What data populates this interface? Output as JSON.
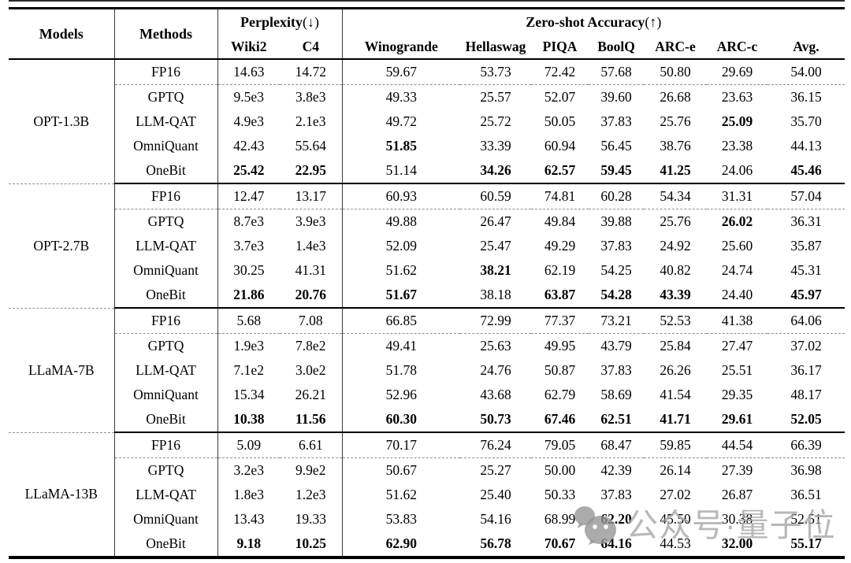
{
  "header": {
    "models": "Models",
    "methods": "Methods",
    "perplexity_group": "Perplexity",
    "perplexity_arrow": "(↓)",
    "zeroshot_group": "Zero-shot Accuracy",
    "zeroshot_arrow": "(↑)",
    "subcolumns": [
      "Wiki2",
      "C4",
      "Winogrande",
      "Hellaswag",
      "PIQA",
      "BoolQ",
      "ARC-e",
      "ARC-c",
      "Avg."
    ]
  },
  "blocks": [
    {
      "model": "OPT-1.3B",
      "rows": [
        {
          "method": "FP16",
          "values": [
            "14.63",
            "14.72",
            "59.67",
            "53.73",
            "72.42",
            "57.68",
            "50.80",
            "29.69",
            "54.00"
          ],
          "bold": [
            0,
            0,
            0,
            0,
            0,
            0,
            0,
            0,
            0
          ]
        },
        {
          "method": "GPTQ",
          "values": [
            "9.5e3",
            "3.8e3",
            "49.33",
            "25.57",
            "52.07",
            "39.60",
            "26.68",
            "23.63",
            "36.15"
          ],
          "bold": [
            0,
            0,
            0,
            0,
            0,
            0,
            0,
            0,
            0
          ]
        },
        {
          "method": "LLM-QAT",
          "values": [
            "4.9e3",
            "2.1e3",
            "49.72",
            "25.72",
            "50.05",
            "37.83",
            "25.76",
            "25.09",
            "35.70"
          ],
          "bold": [
            0,
            0,
            0,
            0,
            0,
            0,
            0,
            1,
            0
          ]
        },
        {
          "method": "OmniQuant",
          "values": [
            "42.43",
            "55.64",
            "51.85",
            "33.39",
            "60.94",
            "56.45",
            "38.76",
            "23.38",
            "44.13"
          ],
          "bold": [
            0,
            0,
            1,
            0,
            0,
            0,
            0,
            0,
            0
          ]
        },
        {
          "method": "OneBit",
          "values": [
            "25.42",
            "22.95",
            "51.14",
            "34.26",
            "62.57",
            "59.45",
            "41.25",
            "24.06",
            "45.46"
          ],
          "bold": [
            1,
            1,
            0,
            1,
            1,
            1,
            1,
            0,
            1
          ]
        }
      ]
    },
    {
      "model": "OPT-2.7B",
      "rows": [
        {
          "method": "FP16",
          "values": [
            "12.47",
            "13.17",
            "60.93",
            "60.59",
            "74.81",
            "60.28",
            "54.34",
            "31.31",
            "57.04"
          ],
          "bold": [
            0,
            0,
            0,
            0,
            0,
            0,
            0,
            0,
            0
          ]
        },
        {
          "method": "GPTQ",
          "values": [
            "8.7e3",
            "3.9e3",
            "49.88",
            "26.47",
            "49.84",
            "39.88",
            "25.76",
            "26.02",
            "36.31"
          ],
          "bold": [
            0,
            0,
            0,
            0,
            0,
            0,
            0,
            1,
            0
          ]
        },
        {
          "method": "LLM-QAT",
          "values": [
            "3.7e3",
            "1.4e3",
            "52.09",
            "25.47",
            "49.29",
            "37.83",
            "24.92",
            "25.60",
            "35.87"
          ],
          "bold": [
            0,
            0,
            0,
            0,
            0,
            0,
            0,
            0,
            0
          ]
        },
        {
          "method": "OmniQuant",
          "values": [
            "30.25",
            "41.31",
            "51.62",
            "38.21",
            "62.19",
            "54.25",
            "40.82",
            "24.74",
            "45.31"
          ],
          "bold": [
            0,
            0,
            0,
            1,
            0,
            0,
            0,
            0,
            0
          ]
        },
        {
          "method": "OneBit",
          "values": [
            "21.86",
            "20.76",
            "51.67",
            "38.18",
            "63.87",
            "54.28",
            "43.39",
            "24.40",
            "45.97"
          ],
          "bold": [
            1,
            1,
            1,
            0,
            1,
            1,
            1,
            0,
            1
          ]
        }
      ]
    },
    {
      "model": "LLaMA-7B",
      "rows": [
        {
          "method": "FP16",
          "values": [
            "5.68",
            "7.08",
            "66.85",
            "72.99",
            "77.37",
            "73.21",
            "52.53",
            "41.38",
            "64.06"
          ],
          "bold": [
            0,
            0,
            0,
            0,
            0,
            0,
            0,
            0,
            0
          ]
        },
        {
          "method": "GPTQ",
          "values": [
            "1.9e3",
            "7.8e2",
            "49.41",
            "25.63",
            "49.95",
            "43.79",
            "25.84",
            "27.47",
            "37.02"
          ],
          "bold": [
            0,
            0,
            0,
            0,
            0,
            0,
            0,
            0,
            0
          ]
        },
        {
          "method": "LLM-QAT",
          "values": [
            "7.1e2",
            "3.0e2",
            "51.78",
            "24.76",
            "50.87",
            "37.83",
            "26.26",
            "25.51",
            "36.17"
          ],
          "bold": [
            0,
            0,
            0,
            0,
            0,
            0,
            0,
            0,
            0
          ]
        },
        {
          "method": "OmniQuant",
          "values": [
            "15.34",
            "26.21",
            "52.96",
            "43.68",
            "62.79",
            "58.69",
            "41.54",
            "29.35",
            "48.17"
          ],
          "bold": [
            0,
            0,
            0,
            0,
            0,
            0,
            0,
            0,
            0
          ]
        },
        {
          "method": "OneBit",
          "values": [
            "10.38",
            "11.56",
            "60.30",
            "50.73",
            "67.46",
            "62.51",
            "41.71",
            "29.61",
            "52.05"
          ],
          "bold": [
            1,
            1,
            1,
            1,
            1,
            1,
            1,
            1,
            1
          ]
        }
      ]
    },
    {
      "model": "LLaMA-13B",
      "rows": [
        {
          "method": "FP16",
          "values": [
            "5.09",
            "6.61",
            "70.17",
            "76.24",
            "79.05",
            "68.47",
            "59.85",
            "44.54",
            "66.39"
          ],
          "bold": [
            0,
            0,
            0,
            0,
            0,
            0,
            0,
            0,
            0
          ]
        },
        {
          "method": "GPTQ",
          "values": [
            "3.2e3",
            "9.9e2",
            "50.67",
            "25.27",
            "50.00",
            "42.39",
            "26.14",
            "27.39",
            "36.98"
          ],
          "bold": [
            0,
            0,
            0,
            0,
            0,
            0,
            0,
            0,
            0
          ]
        },
        {
          "method": "LLM-QAT",
          "values": [
            "1.8e3",
            "1.2e3",
            "51.62",
            "25.40",
            "50.33",
            "37.83",
            "27.02",
            "26.87",
            "36.51"
          ],
          "bold": [
            0,
            0,
            0,
            0,
            0,
            0,
            0,
            0,
            0
          ]
        },
        {
          "method": "OmniQuant",
          "values": [
            "13.43",
            "19.33",
            "53.83",
            "54.16",
            "68.99",
            "62.20",
            "45.50",
            "30.38",
            "52.51"
          ],
          "bold": [
            0,
            0,
            0,
            0,
            0,
            1,
            0,
            0,
            0
          ]
        },
        {
          "method": "OneBit",
          "values": [
            "9.18",
            "10.25",
            "62.90",
            "56.78",
            "70.67",
            "64.16",
            "44.53",
            "32.00",
            "55.17"
          ],
          "bold": [
            1,
            1,
            1,
            1,
            1,
            1,
            0,
            1,
            1
          ]
        }
      ]
    }
  ],
  "watermark": {
    "icon": "wechat-icon",
    "text": "公众号·量子位"
  }
}
